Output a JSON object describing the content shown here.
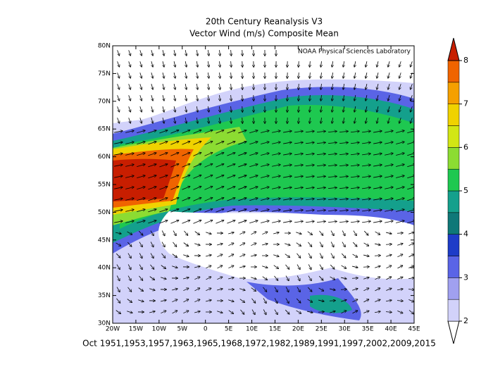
{
  "chart_data": {
    "type": "vector-map",
    "title": "20th Century Reanalysis V3",
    "subtitle": "Vector Wind (m/s) Composite Mean",
    "credit": "NOAA Physical Sciences Laboratory",
    "footnote": "Oct 1951,1953,1957,1963,1965,1968,1972,1982,1989,1991,1997,2002,2009,2015",
    "xlim": [
      -20,
      45
    ],
    "xticks": [
      {
        "value": -20,
        "label": "20W"
      },
      {
        "value": -15,
        "label": "15W"
      },
      {
        "value": -10,
        "label": "10W"
      },
      {
        "value": -5,
        "label": "5W"
      },
      0,
      {
        "value": 5,
        "label": "5E"
      },
      {
        "value": 10,
        "label": "10E"
      },
      {
        "value": 15,
        "label": "15E"
      },
      {
        "value": 20,
        "label": "20E"
      },
      {
        "value": 25,
        "label": "25E"
      },
      {
        "value": 30,
        "label": "30E"
      },
      {
        "value": 35,
        "label": "35E"
      },
      {
        "value": 40,
        "label": "40E"
      },
      {
        "value": 45,
        "label": "45E"
      }
    ],
    "ylim": [
      30,
      80
    ],
    "yticks": [
      {
        "value": 30,
        "label": "30N"
      },
      {
        "value": 35,
        "label": "35N"
      },
      {
        "value": 40,
        "label": "40N"
      },
      {
        "value": 45,
        "label": "45N"
      },
      {
        "value": 50,
        "label": "50N"
      },
      {
        "value": 55,
        "label": "55N"
      },
      {
        "value": 60,
        "label": "60N"
      },
      {
        "value": 65,
        "label": "65N"
      },
      {
        "value": 70,
        "label": "70N"
      },
      {
        "value": 75,
        "label": "75N"
      },
      {
        "value": 80,
        "label": "80N"
      }
    ],
    "colorbar": {
      "lim": [
        2,
        8
      ],
      "ticks": [
        2,
        3,
        4,
        5,
        6,
        7,
        8
      ],
      "colors": [
        "#ffffff",
        "#d2d2fa",
        "#a0a0f0",
        "#5a64e6",
        "#1e3cc8",
        "#0f7878",
        "#14a08c",
        "#1ec850",
        "#8cdc32",
        "#d2e614",
        "#f0d200",
        "#f5a000",
        "#f06400",
        "#c81e00"
      ]
    }
  }
}
